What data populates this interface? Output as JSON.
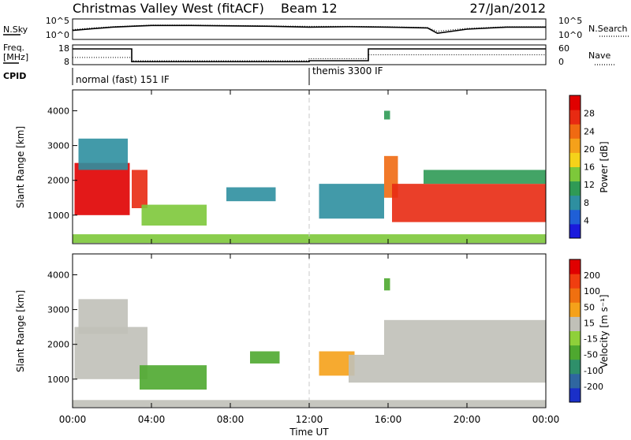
{
  "header": {
    "station": "Christmas Valley West (fitACF)",
    "beam": "Beam 12",
    "date": "27/Jan/2012"
  },
  "colors": {
    "power_scale": [
      "#1a1adc",
      "#1f5fd6",
      "#2e8fa0",
      "#2f9a55",
      "#7dc83a",
      "#f5d21a",
      "#f5a11a",
      "#f06a12",
      "#e82a12",
      "#e00000"
    ],
    "velocity_scale": [
      "#1a2fc8",
      "#2f66a0",
      "#2e8f6a",
      "#4ea82f",
      "#8fd03a",
      "#c0c0b8",
      "#f5a11a",
      "#f07010",
      "#f03e10",
      "#e00000"
    ],
    "gridline": "#c8c8c8"
  },
  "chart_data": [
    {
      "type": "line",
      "name": "noise-panel",
      "left_label": "N.Sky",
      "right_label": "N.Search",
      "left_ticks": [
        "10^5",
        "10^0"
      ],
      "right_ticks": [
        "10^5",
        "10^0"
      ],
      "x_hours": [
        0,
        1,
        2,
        3,
        4,
        6,
        8,
        10,
        12,
        14,
        16,
        18,
        18.5,
        20,
        22,
        24
      ],
      "n_sky_log10": [
        2.2,
        2.6,
        3.0,
        3.2,
        3.4,
        3.4,
        3.3,
        3.2,
        3.0,
        3.1,
        3.0,
        2.8,
        1.5,
        2.5,
        3.0,
        3.0
      ],
      "n_search_log10": [
        2.4,
        2.8,
        3.1,
        3.3,
        3.5,
        3.5,
        3.4,
        3.3,
        3.2,
        3.2,
        3.1,
        2.9,
        2.0,
        2.7,
        3.1,
        3.1
      ],
      "ylim_log10": [
        0,
        5
      ]
    },
    {
      "type": "line",
      "name": "frequency-panel",
      "left_label": "Freq. [MHz]",
      "right_label": "Nave",
      "left_ticks": [
        "18",
        "8"
      ],
      "right_ticks": [
        "60",
        "0"
      ],
      "freq_x_hours": [
        0,
        3.0,
        3.0,
        12.0,
        12.0,
        15.0,
        15.0,
        24
      ],
      "freq_mhz": [
        16,
        16,
        9.5,
        9.5,
        10,
        10,
        16,
        16
      ],
      "nave_x_hours": [
        0,
        3.0,
        3.0,
        12.0,
        12.0,
        15.0,
        15.0,
        24
      ],
      "nave": [
        22,
        22,
        12,
        12,
        18,
        18,
        30,
        30
      ],
      "freq_ylim": [
        8,
        18
      ],
      "nave_ylim": [
        0,
        60
      ]
    },
    {
      "type": "table",
      "name": "cpid-panel",
      "label": "CPID",
      "entries": [
        {
          "start_hour": 0,
          "text": "normal (fast) 151 IF"
        },
        {
          "start_hour": 12,
          "text": "themis 3300 IF"
        }
      ]
    },
    {
      "type": "heatmap",
      "name": "power-panel",
      "ylabel": "Slant Range [km]",
      "y_ticks": [
        1000,
        2000,
        3000,
        4000
      ],
      "ylim": [
        180,
        4600
      ],
      "colorbar_label": "Power [dB]",
      "colorbar_ticks": [
        "4",
        "8",
        "12",
        "16",
        "20",
        "24",
        "28"
      ],
      "colorbar_range": [
        0,
        30
      ],
      "regions": [
        {
          "x0": 0.1,
          "x1": 2.9,
          "y0": 1000,
          "y1": 2500,
          "value": 27
        },
        {
          "x0": 0.3,
          "x1": 2.8,
          "y0": 2300,
          "y1": 3200,
          "value": 8
        },
        {
          "x0": 3.0,
          "x1": 3.8,
          "y0": 1200,
          "y1": 2300,
          "value": 24
        },
        {
          "x0": 3.5,
          "x1": 6.8,
          "y0": 700,
          "y1": 1300,
          "value": 14
        },
        {
          "x0": 7.8,
          "x1": 10.3,
          "y0": 1400,
          "y1": 1800,
          "value": 8
        },
        {
          "x0": 12.5,
          "x1": 15.8,
          "y0": 900,
          "y1": 1900,
          "value": 8
        },
        {
          "x0": 15.8,
          "x1": 16.5,
          "y0": 1500,
          "y1": 2700,
          "value": 22
        },
        {
          "x0": 16.2,
          "x1": 24.0,
          "y0": 800,
          "y1": 1900,
          "value": 26
        },
        {
          "x0": 17.8,
          "x1": 24.0,
          "y0": 1900,
          "y1": 2300,
          "value": 10
        },
        {
          "x0": 0.0,
          "x1": 24.0,
          "y0": 200,
          "y1": 450,
          "value": 12
        },
        {
          "x0": 15.8,
          "x1": 16.1,
          "y0": 3750,
          "y1": 4000,
          "value": 10
        }
      ]
    },
    {
      "type": "heatmap",
      "name": "velocity-panel",
      "ylabel": "Slant Range [km]",
      "y_ticks": [
        1000,
        2000,
        3000,
        4000
      ],
      "ylim": [
        180,
        4600
      ],
      "colorbar_label": "Velocity [m s⁻¹]",
      "colorbar_ticks": [
        "200",
        "100",
        "50",
        "15",
        "-15",
        "-50",
        "-100",
        "-200"
      ],
      "colorbar_range": [
        -250,
        250
      ],
      "regions": [
        {
          "x0": 0.1,
          "x1": 3.8,
          "y0": 1000,
          "y1": 2500,
          "value": 0
        },
        {
          "x0": 0.3,
          "x1": 2.8,
          "y0": 2300,
          "y1": 3300,
          "value": 0
        },
        {
          "x0": 3.4,
          "x1": 6.8,
          "y0": 700,
          "y1": 1400,
          "value": -70
        },
        {
          "x0": 9.0,
          "x1": 10.5,
          "y0": 1450,
          "y1": 1800,
          "value": -70
        },
        {
          "x0": 12.5,
          "x1": 14.3,
          "y0": 1100,
          "y1": 1800,
          "value": 70
        },
        {
          "x0": 14.0,
          "x1": 15.8,
          "y0": 900,
          "y1": 1700,
          "value": 30
        },
        {
          "x0": 15.8,
          "x1": 24.0,
          "y0": 900,
          "y1": 2700,
          "value": 0
        },
        {
          "x0": 0.0,
          "x1": 24.0,
          "y0": 200,
          "y1": 400,
          "value": 30
        },
        {
          "x0": 15.8,
          "x1": 16.1,
          "y0": 3550,
          "y1": 3900,
          "value": -70
        }
      ]
    }
  ],
  "x_axis": {
    "label": "Time UT",
    "ticks": [
      "00:00",
      "04:00",
      "08:00",
      "12:00",
      "16:00",
      "20:00",
      "00:00"
    ],
    "tick_hours": [
      0,
      4,
      8,
      12,
      16,
      20,
      24
    ]
  }
}
